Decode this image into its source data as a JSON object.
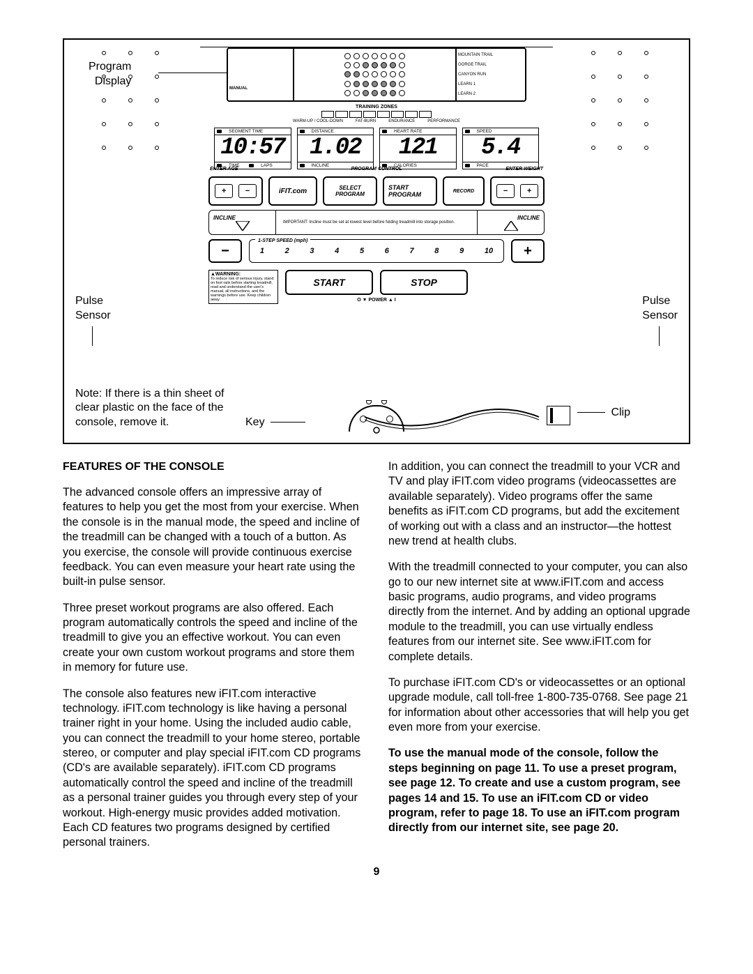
{
  "console": {
    "program_display_label": "Program\nDisplay",
    "manual_label": "MANUAL",
    "program_names": [
      "MOUNTAIN TRAIL",
      "GORGE TRAIL",
      "CANYON RUN",
      "LEARN 1",
      "LEARN 2"
    ],
    "led_rows": [
      [
        0,
        0,
        0,
        0,
        0,
        0,
        0
      ],
      [
        0,
        0,
        1,
        1,
        1,
        1,
        0
      ],
      [
        1,
        1,
        0,
        0,
        0,
        0,
        0
      ],
      [
        0,
        1,
        1,
        1,
        1,
        1,
        0
      ],
      [
        0,
        0,
        1,
        1,
        1,
        1,
        0
      ]
    ],
    "training_zones_label": "TRAINING ZONES",
    "tz_labels": [
      "WARM-UP / COOL-DOWN",
      "FAT-BURN",
      "ENDURANCE",
      "PERFORMANCE"
    ],
    "lcd": [
      {
        "top": "SEGMENT TIME",
        "val": "10:57",
        "bot": [
          "TIME",
          "LAPS"
        ]
      },
      {
        "top": "DISTANCE",
        "val": "1.02",
        "bot": [
          "INCLINE"
        ]
      },
      {
        "top": "HEART RATE",
        "val": "121",
        "bot": [
          "CALORIES"
        ]
      },
      {
        "top": "SPEED",
        "val": "5.4",
        "bot": [
          "PACE"
        ]
      }
    ],
    "enter_age": "ENTER AGE",
    "enter_weight": "ENTER WEIGHT",
    "program_control": "PROGRAM CONTROL",
    "ifit": "iFIT.com",
    "select_program": "SELECT\nPROGRAM",
    "start_program": "START PROGRAM",
    "record": "RECORD",
    "incline": "INCLINE",
    "incline_note": "IMPORTANT: Incline must be set at lowest level before folding treadmill into storage position.",
    "speed_label": "1-STEP SPEED (mph)",
    "speed_nums": [
      "1",
      "2",
      "3",
      "4",
      "5",
      "6",
      "7",
      "8",
      "9",
      "10"
    ],
    "warning_title": "▲WARNING:",
    "warning_text": "To reduce risk of serious injury, stand on foot rails before starting treadmill, read and understand the user's manual, all instructions, and the warnings before use. Keep children away.",
    "start": "START",
    "stop": "STOP",
    "power": "O ▼ POWER ▲ I",
    "pulse_left": "Pulse\nSensor",
    "pulse_right": "Pulse\nSensor",
    "note": "Note: If there is a thin sheet of clear plastic on the face of the console, remove it.",
    "key": "Key",
    "clip": "Clip"
  },
  "body": {
    "heading": "FEATURES OF THE CONSOLE",
    "col1": [
      "The advanced console offers an impressive array of features to help you get the most from your exercise. When the console is in the manual mode, the speed and incline of the treadmill can be changed with a touch of a button. As you exercise, the console will provide continuous exercise feedback. You can even measure your heart rate using the built-in pulse sensor.",
      "Three preset workout programs are also offered. Each program automatically controls the speed and incline of the treadmill to give you an effective workout. You can even create your own custom workout programs and store them in memory for future use.",
      "The console also features new iFIT.com interactive technology. iFIT.com technology is like having a personal trainer right in your home. Using the included audio cable, you can connect the treadmill to your home stereo, portable stereo, or computer and play special iFIT.com CD programs (CD's are available separately). iFIT.com CD programs automatically control the speed and incline of the treadmill as a personal trainer guides you through every step of your workout. High-energy music provides added motivation. Each CD features two programs designed by certified personal trainers."
    ],
    "col2": [
      "In addition, you can connect the treadmill to your VCR and TV and play iFIT.com video programs (videocassettes are available separately). Video programs offer the same benefits as iFIT.com CD programs, but add the excitement of working out with a class and an instructor—the hottest new trend at health clubs.",
      "With the treadmill connected to your computer, you can also go to our new internet site at www.iFIT.com and access basic programs, audio programs, and video programs directly from the internet. And by adding an optional upgrade module to the treadmill, you can use virtually endless features from our internet site. See www.iFIT.com for complete details.",
      "To purchase iFIT.com CD's or videocassettes or an optional upgrade module, call toll-free 1-800-735-0768. See page 21 for information about other accessories that will help you get even more from your exercise."
    ],
    "col2_bold": "To use the manual mode of the console, follow the steps beginning on page 11. To use a preset program, see page 12. To create and use a custom program, see pages 14 and 15. To use an iFIT.com CD or video program, refer to page 18. To use an iFIT.com program directly from our internet site, see page 20.",
    "page": "9"
  }
}
